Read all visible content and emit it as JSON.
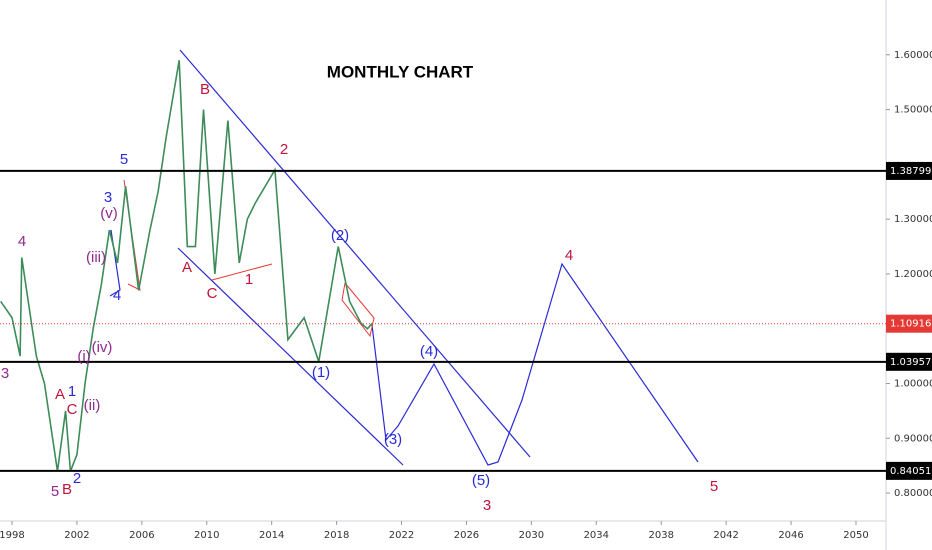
{
  "chart_data": {
    "type": "line",
    "title": "MONTHLY CHART",
    "x": [
      1997.3,
      1998,
      1998.5,
      1998.6,
      1999.5,
      2000,
      2000.5,
      2000.8,
      2001.3,
      2001.6,
      2002,
      2002.5,
      2003,
      2003.5,
      2004,
      2004.5,
      2005,
      2005.8,
      2006.5,
      2007,
      2007.5,
      2008.3,
      2008.8,
      2009.3,
      2009.8,
      2010.5,
      2011.3,
      2012,
      2012.5,
      2013,
      2014.2,
      2015,
      2016,
      2016.9,
      2018.1,
      2018.8,
      2019.5,
      2019.9,
      2020.2
    ],
    "series": [
      {
        "color": "#3d8c5a",
        "values": [
          1.15,
          1.12,
          1.05,
          1.23,
          1.05,
          1.0,
          0.9,
          0.84,
          0.95,
          0.84,
          0.87,
          1.0,
          1.1,
          1.18,
          1.28,
          1.22,
          1.36,
          1.17,
          1.28,
          1.35,
          1.45,
          1.59,
          1.25,
          1.25,
          1.5,
          1.2,
          1.48,
          1.22,
          1.3,
          1.33,
          1.39,
          1.08,
          1.12,
          1.04,
          1.25,
          1.15,
          1.11,
          1.1,
          1.11
        ]
      }
    ],
    "xlim": [
      1997.26,
      2051.85
    ],
    "xticks": [
      1998,
      2002,
      2006,
      2010,
      2014,
      2018,
      2022,
      2026,
      2030,
      2034,
      2038,
      2042,
      2046,
      2050
    ],
    "ylim": [
      0.749,
      1.7
    ],
    "yticks": [
      {
        "value": 1.6,
        "label": "1.60000"
      },
      {
        "value": 1.5,
        "label": "1.50000"
      },
      {
        "value": 1.3,
        "label": "1.30000"
      },
      {
        "value": 1.2,
        "label": "1.20000"
      },
      {
        "value": 1.0,
        "label": "1.00000"
      },
      {
        "value": 0.9,
        "label": "0.90000"
      },
      {
        "value": 0.8,
        "label": "0.80000"
      }
    ],
    "levels": [
      {
        "value": 1.38799,
        "label": "1.38799",
        "color": "#000000"
      },
      {
        "value": 1.03957,
        "label": "1.03957",
        "color": "#000000"
      },
      {
        "value": 0.84051,
        "label": "0.84051",
        "color": "#000000"
      },
      {
        "value": 1.10916,
        "label": "1.10916",
        "color": "#e53935",
        "dotted": true
      }
    ],
    "annotations": [
      "5",
      "3",
      "(v)",
      "(iii)",
      "4",
      "4",
      "3",
      "(i)",
      "(iv)",
      "A",
      "1",
      "C",
      "(ii)",
      "5",
      "B",
      "2",
      "B",
      "A",
      "C",
      "1",
      "2",
      "(2)",
      "(1)",
      "(4)",
      "(3)",
      "(5)",
      "3",
      "4",
      "5"
    ]
  }
}
